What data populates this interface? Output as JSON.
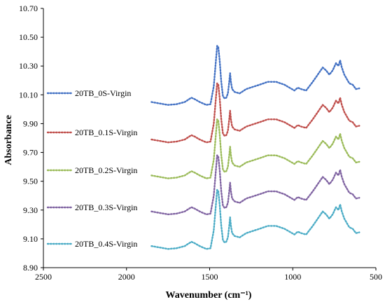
{
  "chart_data": {
    "type": "line",
    "xlabel": "Wavenumber (cm⁻¹)",
    "ylabel": "Absorbance",
    "xlim": [
      2500,
      500
    ],
    "ylim": [
      8.9,
      10.7
    ],
    "x_reversed": true,
    "x_ticks": [
      2500,
      2000,
      1500,
      1000,
      500
    ],
    "x_tick_labels": [
      "2500",
      "2000",
      "1500",
      "1000",
      "500"
    ],
    "y_ticks": [
      8.9,
      9.1,
      9.3,
      9.5,
      9.7,
      9.9,
      10.1,
      10.3,
      10.5,
      10.7
    ],
    "y_tick_labels": [
      "8.90",
      "9.10",
      "9.30",
      "9.50",
      "9.70",
      "9.90",
      "10.10",
      "10.30",
      "10.50",
      "10.70"
    ],
    "grid": false,
    "legend_position": "left (inline labels)",
    "line_style": "dotted",
    "x": [
      1850,
      1800,
      1750,
      1700,
      1650,
      1610,
      1590,
      1560,
      1520,
      1495,
      1475,
      1462,
      1455,
      1448,
      1440,
      1430,
      1420,
      1410,
      1400,
      1390,
      1382,
      1377,
      1372,
      1365,
      1350,
      1320,
      1280,
      1200,
      1150,
      1100,
      1050,
      1020,
      990,
      970,
      950,
      920,
      880,
      850,
      820,
      800,
      780,
      760,
      740,
      725,
      715,
      705,
      690,
      660,
      640,
      620,
      600
    ],
    "base_shape": [
      0.06,
      0.05,
      0.04,
      0.045,
      0.06,
      0.09,
      0.08,
      0.06,
      0.04,
      0.045,
      0.17,
      0.35,
      0.45,
      0.44,
      0.35,
      0.2,
      0.1,
      0.085,
      0.09,
      0.12,
      0.2,
      0.26,
      0.2,
      0.15,
      0.13,
      0.12,
      0.15,
      0.18,
      0.2,
      0.2,
      0.18,
      0.16,
      0.14,
      0.16,
      0.15,
      0.14,
      0.2,
      0.25,
      0.3,
      0.28,
      0.25,
      0.28,
      0.33,
      0.31,
      0.35,
      0.3,
      0.25,
      0.19,
      0.18,
      0.15,
      0.155
    ],
    "series": [
      {
        "name": "20TB_0S-Virgin",
        "offset": 9.99,
        "color": "#4472C4"
      },
      {
        "name": "20TB_0.1S-Virgin",
        "offset": 9.73,
        "color": "#C0504D"
      },
      {
        "name": "20TB_0.2S-Virgin",
        "offset": 9.48,
        "color": "#9BBB59"
      },
      {
        "name": "20TB_0.3S-Virgin",
        "offset": 9.23,
        "color": "#8064A2"
      },
      {
        "name": "20TB_0.4S-Virgin",
        "offset": 8.99,
        "color": "#4BACC6"
      }
    ]
  }
}
